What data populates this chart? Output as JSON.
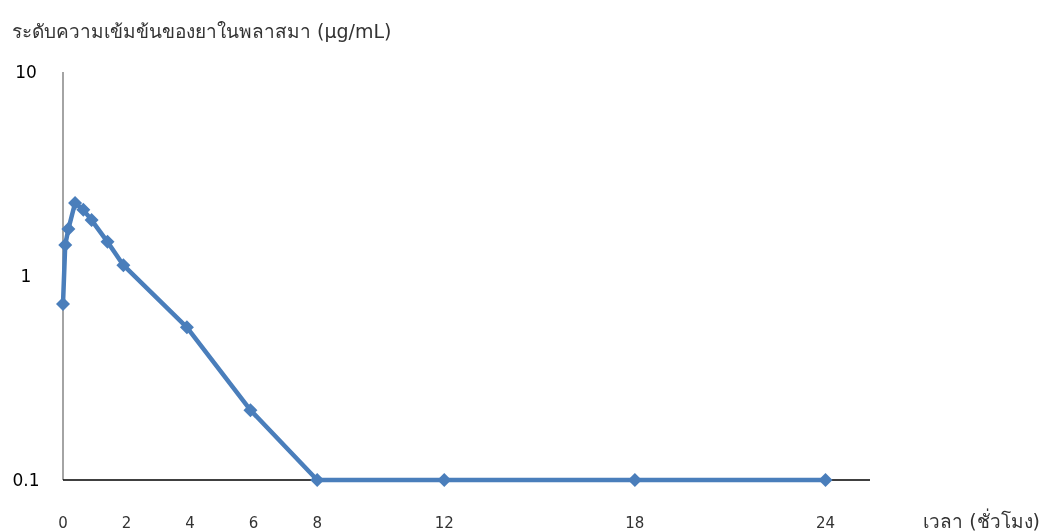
{
  "chart_data": {
    "type": "line",
    "ylabel": "ระดับความเข้มข้นของยาในพลาสมา (μg/mL)",
    "xlabel": "เวลา (ชั่วโมง)",
    "x": [
      0,
      0.07,
      0.17,
      0.38,
      0.64,
      0.9,
      1.4,
      1.9,
      3.9,
      5.9,
      8,
      12,
      18,
      24
    ],
    "series": [
      {
        "color": "#4a7ebb",
        "values": [
          0.73,
          1.42,
          1.7,
          2.28,
          2.11,
          1.88,
          1.47,
          1.13,
          0.56,
          0.22,
          0.1,
          0.1,
          0.1,
          0.1
        ]
      }
    ],
    "xlim": [
      0,
      25.4
    ],
    "xticks": [
      0,
      2,
      4,
      6,
      8,
      12,
      18,
      24
    ],
    "ylim": [
      0.1,
      10
    ],
    "yticks": [
      0.1,
      1,
      10
    ],
    "log": true,
    "marker": "diamond",
    "grid": false
  }
}
